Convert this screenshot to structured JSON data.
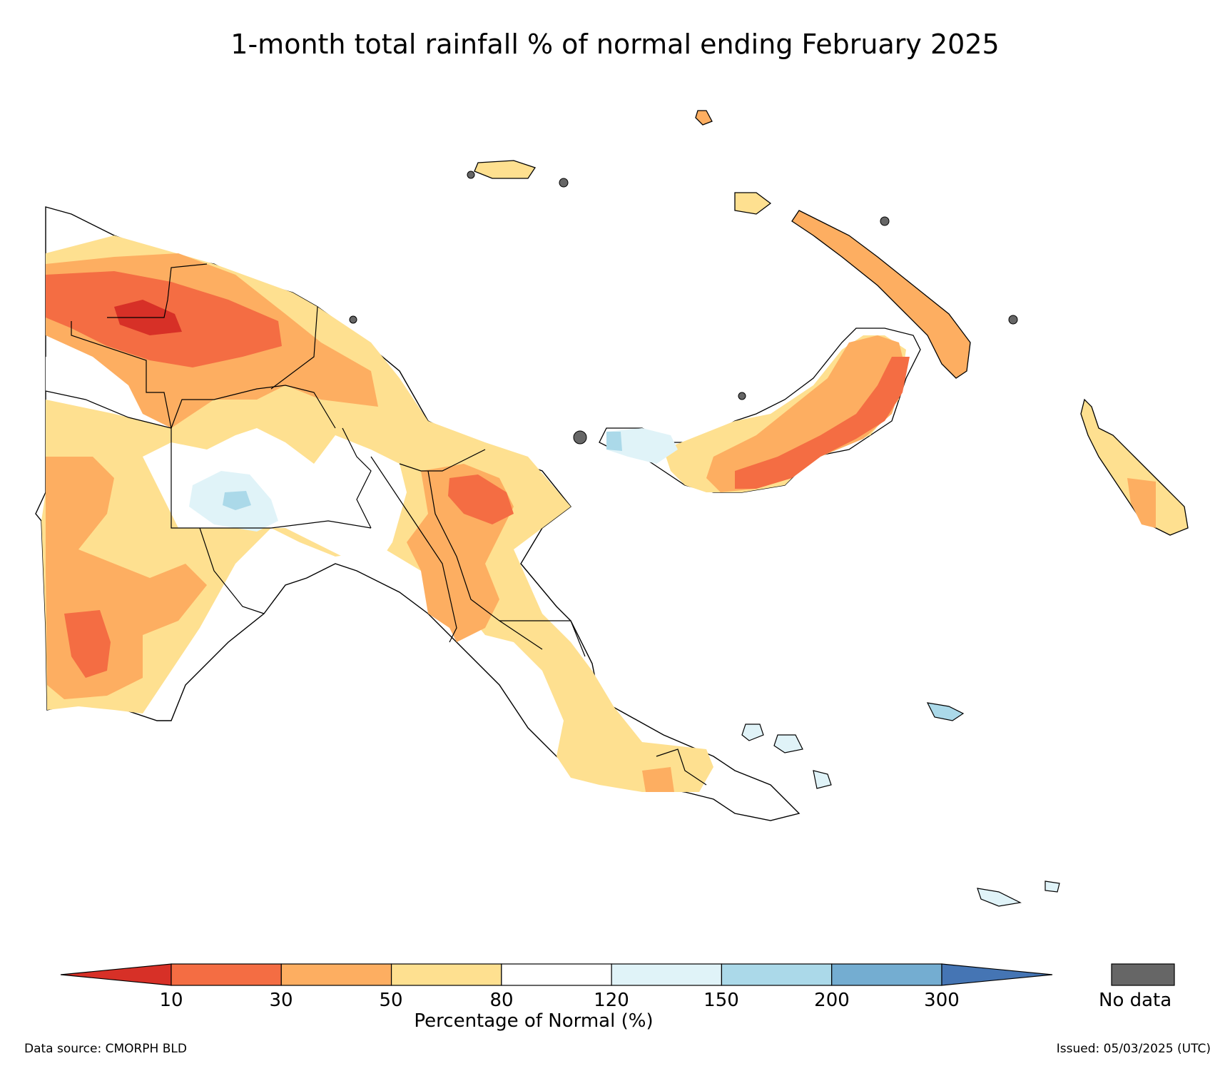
{
  "title": "1-month total rainfall % of normal ending February 2025",
  "colorbar": {
    "label": "Percentage of Normal (%)",
    "ticks": [
      "10",
      "30",
      "50",
      "80",
      "120",
      "150",
      "200",
      "300"
    ],
    "bins": [
      {
        "range": "<10",
        "color": "#d73027"
      },
      {
        "range": "10-30",
        "color": "#f46d43"
      },
      {
        "range": "30-50",
        "color": "#fdae61"
      },
      {
        "range": "50-80",
        "color": "#fee090"
      },
      {
        "range": "80-120",
        "color": "#ffffff"
      },
      {
        "range": "120-150",
        "color": "#e0f3f8"
      },
      {
        "range": "150-200",
        "color": "#abd9e9"
      },
      {
        "range": "200-300",
        "color": "#74add1"
      },
      {
        "range": ">300",
        "color": "#4575b4"
      }
    ]
  },
  "no_data": {
    "label": "No data",
    "color": "#666666"
  },
  "footer": {
    "source": "Data source: CMORPH BLD",
    "issued": "Issued: 05/03/2025 (UTC)"
  }
}
